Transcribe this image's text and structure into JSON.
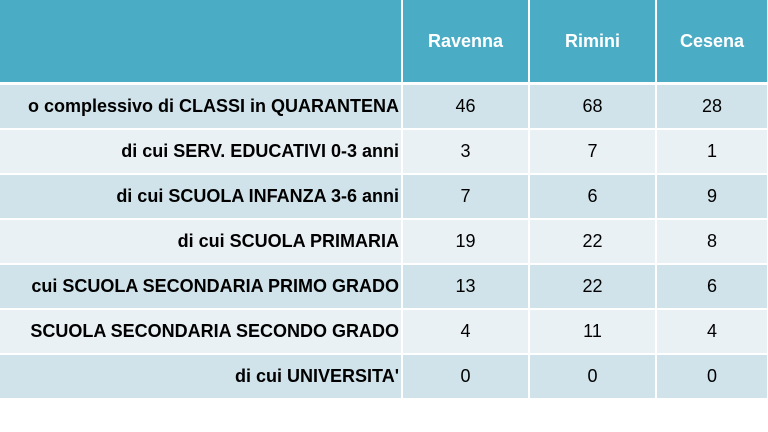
{
  "table": {
    "columns": [
      "",
      "Ravenna",
      "Rimini",
      "Cesena"
    ],
    "rows": [
      {
        "label": "o complessivo di CLASSI in QUARANTENA",
        "values": [
          "46",
          "68",
          "28"
        ]
      },
      {
        "label": "di cui SERV. EDUCATIVI 0-3 anni",
        "values": [
          "3",
          "7",
          "1"
        ]
      },
      {
        "label": "di cui SCUOLA INFANZA 3-6 anni",
        "values": [
          "7",
          "6",
          "9"
        ]
      },
      {
        "label": "di cui SCUOLA PRIMARIA",
        "values": [
          "19",
          "22",
          "8"
        ]
      },
      {
        "label": "cui SCUOLA SECONDARIA PRIMO GRADO",
        "values": [
          "13",
          "22",
          "6"
        ]
      },
      {
        "label": "SCUOLA SECONDARIA SECONDO GRADO",
        "values": [
          "4",
          "11",
          "4"
        ]
      },
      {
        "label": "di cui UNIVERSITA'",
        "values": [
          "0",
          "0",
          "0"
        ]
      }
    ]
  },
  "colors": {
    "header_bg": "#4bacc6",
    "row_odd": "#d0e3ea",
    "row_even": "#e9f1f5"
  }
}
